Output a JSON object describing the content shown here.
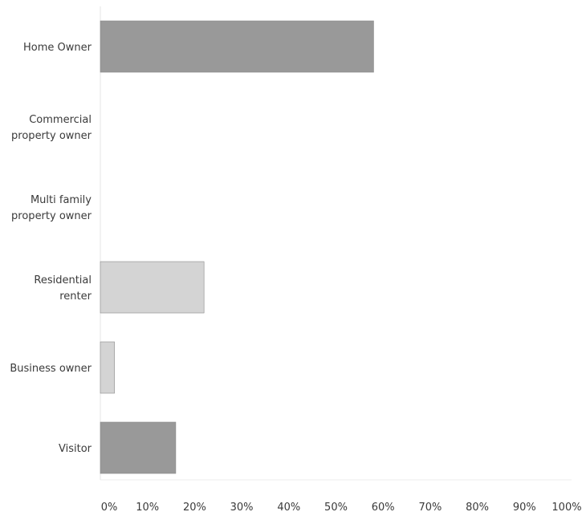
{
  "chart_data": {
    "type": "bar",
    "orientation": "horizontal",
    "categories": [
      "Home Owner",
      "Commercial property owner",
      "Multi family property owner",
      "Residential renter",
      "Business owner",
      "Visitor"
    ],
    "category_lines": [
      [
        "Home Owner"
      ],
      [
        "Commercial",
        "property owner"
      ],
      [
        "Multi family",
        "property owner"
      ],
      [
        "Residential",
        "renter"
      ],
      [
        "Business owner"
      ],
      [
        "Visitor"
      ]
    ],
    "values": [
      58,
      0,
      0,
      22,
      3,
      16
    ],
    "value_unit": "%",
    "colors": [
      "#999999",
      "#c8c8c8",
      "#c8c8c8",
      "#d4d4d4",
      "#d4d4d4",
      "#999999"
    ],
    "xlim": [
      0,
      100
    ],
    "x_ticks": [
      0,
      10,
      20,
      30,
      40,
      50,
      60,
      70,
      80,
      90,
      100
    ],
    "x_tick_labels": [
      "0%",
      "10%",
      "20%",
      "30%",
      "40%",
      "50%",
      "60%",
      "70%",
      "80%",
      "90%",
      "100%"
    ],
    "title": "",
    "xlabel": "",
    "ylabel": "",
    "grid": false,
    "legend": "none"
  }
}
